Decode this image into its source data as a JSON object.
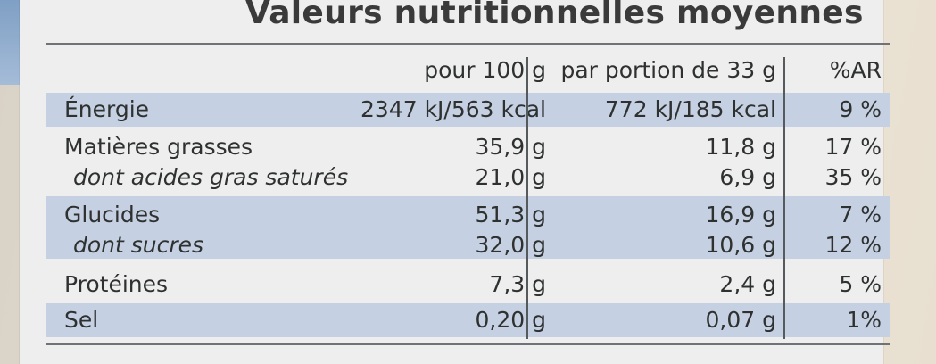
{
  "title": "Valeurs nutritionnelles moyennes",
  "columns": {
    "per100": "pour 100 g",
    "perPortion": "par portion de 33 g",
    "ar": "%AR"
  },
  "rows": [
    {
      "name": "Énergie",
      "per100": "2347 kJ/563 kcal",
      "perPortion": "772 kJ/185 kcal",
      "ar": "9 %",
      "sub": false,
      "shaded": true
    },
    {
      "name": "Matières grasses",
      "per100": "35,9 g",
      "perPortion": "11,8 g",
      "ar": "17 %",
      "sub": false,
      "shaded": false
    },
    {
      "name": "dont acides gras saturés",
      "per100": "21,0 g",
      "perPortion": "6,9 g",
      "ar": "35 %",
      "sub": true,
      "shaded": false
    },
    {
      "name": "Glucides",
      "per100": "51,3 g",
      "perPortion": "16,9 g",
      "ar": "7 %",
      "sub": false,
      "shaded": true
    },
    {
      "name": "dont sucres",
      "per100": "32,0 g",
      "perPortion": "10,6 g",
      "ar": "12 %",
      "sub": true,
      "shaded": true
    },
    {
      "name": "Protéines",
      "per100": "7,3 g",
      "perPortion": "2,4 g",
      "ar": "5 %",
      "sub": false,
      "shaded": false
    },
    {
      "name": "Sel",
      "per100": "0,20 g",
      "perPortion": "0,07 g",
      "ar": "1%",
      "sub": false,
      "shaded": true
    }
  ],
  "colors": {
    "shade": "#c5d1e2",
    "logoBlue": "#1f5fa8",
    "logoYellow": "#f4d21c",
    "logoRed": "#d8362a"
  }
}
